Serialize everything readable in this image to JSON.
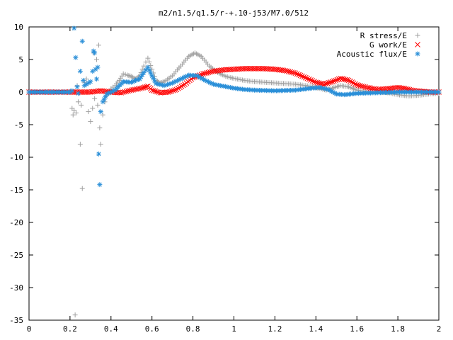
{
  "chart_data": {
    "type": "scatter",
    "title": "m2/n1.5/q1.5/r-+.10-j53/M7.0/512",
    "xlabel": "",
    "ylabel": "",
    "xlim": [
      0,
      2
    ],
    "ylim": [
      -35,
      10
    ],
    "x_ticks": [
      "0",
      "0.2",
      "0.4",
      "0.6",
      "0.8",
      "1",
      "1.2",
      "1.4",
      "1.6",
      "1.8",
      "2"
    ],
    "y_ticks": [
      "10",
      "5",
      "0",
      "-5",
      "-10",
      "-15",
      "-20",
      "-25",
      "-30",
      "-35"
    ],
    "grid": false,
    "legend_position": "top-right",
    "series": [
      {
        "name": "R stress/E",
        "marker": "plus",
        "color": "#a0a0a0",
        "points": [
          [
            0,
            0
          ],
          [
            0.05,
            0
          ],
          [
            0.1,
            0
          ],
          [
            0.15,
            0
          ],
          [
            0.2,
            0
          ],
          [
            0.21,
            -2.5
          ],
          [
            0.215,
            -3.5
          ],
          [
            0.22,
            -2.8
          ],
          [
            0.225,
            -34.2
          ],
          [
            0.23,
            -3.2
          ],
          [
            0.235,
            1.0
          ],
          [
            0.24,
            -1.5
          ],
          [
            0.25,
            -8.0
          ],
          [
            0.255,
            -2.0
          ],
          [
            0.26,
            -14.8
          ],
          [
            0.27,
            1.5
          ],
          [
            0.28,
            2.0
          ],
          [
            0.29,
            -3.0
          ],
          [
            0.3,
            -4.5
          ],
          [
            0.31,
            -2.5
          ],
          [
            0.315,
            6.0
          ],
          [
            0.32,
            -1.0
          ],
          [
            0.33,
            5.0
          ],
          [
            0.335,
            -2.0
          ],
          [
            0.34,
            7.2
          ],
          [
            0.345,
            -5.5
          ],
          [
            0.35,
            -8.0
          ],
          [
            0.36,
            -3.5
          ],
          [
            0.37,
            -1.5
          ],
          [
            0.38,
            -0.5
          ],
          [
            0.4,
            0.5
          ],
          [
            0.42,
            1.0
          ],
          [
            0.44,
            1.8
          ],
          [
            0.46,
            2.8
          ],
          [
            0.48,
            2.6
          ],
          [
            0.5,
            2.4
          ],
          [
            0.52,
            2.0
          ],
          [
            0.54,
            2.5
          ],
          [
            0.56,
            4.0
          ],
          [
            0.58,
            5.2
          ],
          [
            0.6,
            3.5
          ],
          [
            0.62,
            1.8
          ],
          [
            0.64,
            1.4
          ],
          [
            0.66,
            1.6
          ],
          [
            0.7,
            2.5
          ],
          [
            0.74,
            4.0
          ],
          [
            0.78,
            5.5
          ],
          [
            0.81,
            6.0
          ],
          [
            0.84,
            5.5
          ],
          [
            0.88,
            4.0
          ],
          [
            0.92,
            3.0
          ],
          [
            0.96,
            2.4
          ],
          [
            1.0,
            2.1
          ],
          [
            1.05,
            1.8
          ],
          [
            1.1,
            1.6
          ],
          [
            1.15,
            1.5
          ],
          [
            1.2,
            1.4
          ],
          [
            1.25,
            1.3
          ],
          [
            1.3,
            1.2
          ],
          [
            1.35,
            1.0
          ],
          [
            1.4,
            0.7
          ],
          [
            1.45,
            0.3
          ],
          [
            1.48,
            0.6
          ],
          [
            1.52,
            1.0
          ],
          [
            1.56,
            0.8
          ],
          [
            1.6,
            0.3
          ],
          [
            1.65,
            0.1
          ],
          [
            1.7,
            0.0
          ],
          [
            1.75,
            -0.1
          ],
          [
            1.8,
            -0.4
          ],
          [
            1.85,
            -0.6
          ],
          [
            1.9,
            -0.5
          ],
          [
            1.95,
            -0.3
          ],
          [
            2.0,
            -0.2
          ]
        ]
      },
      {
        "name": "G work/E",
        "marker": "cross",
        "color": "#ff0000",
        "points": [
          [
            0,
            0
          ],
          [
            0.1,
            0
          ],
          [
            0.2,
            0
          ],
          [
            0.3,
            0
          ],
          [
            0.35,
            0.2
          ],
          [
            0.4,
            0
          ],
          [
            0.45,
            -0.1
          ],
          [
            0.5,
            0.3
          ],
          [
            0.55,
            0.6
          ],
          [
            0.58,
            0.9
          ],
          [
            0.6,
            0.3
          ],
          [
            0.64,
            -0.1
          ],
          [
            0.68,
            0
          ],
          [
            0.72,
            0.4
          ],
          [
            0.76,
            1.2
          ],
          [
            0.8,
            2.2
          ],
          [
            0.85,
            2.8
          ],
          [
            0.9,
            3.2
          ],
          [
            0.95,
            3.4
          ],
          [
            1.0,
            3.5
          ],
          [
            1.05,
            3.6
          ],
          [
            1.1,
            3.6
          ],
          [
            1.15,
            3.6
          ],
          [
            1.2,
            3.5
          ],
          [
            1.25,
            3.3
          ],
          [
            1.3,
            2.9
          ],
          [
            1.35,
            2.2
          ],
          [
            1.4,
            1.5
          ],
          [
            1.44,
            1.2
          ],
          [
            1.48,
            1.6
          ],
          [
            1.52,
            2.1
          ],
          [
            1.56,
            1.8
          ],
          [
            1.6,
            1.1
          ],
          [
            1.65,
            0.7
          ],
          [
            1.7,
            0.4
          ],
          [
            1.75,
            0.5
          ],
          [
            1.8,
            0.7
          ],
          [
            1.84,
            0.5
          ],
          [
            1.88,
            0.2
          ],
          [
            1.92,
            0.1
          ],
          [
            1.96,
            0.0
          ],
          [
            2.0,
            0.0
          ]
        ]
      },
      {
        "name": "Acoustic flux/E",
        "marker": "star",
        "color": "#2a8fd8",
        "points": [
          [
            0,
            0
          ],
          [
            0.05,
            0
          ],
          [
            0.1,
            0
          ],
          [
            0.15,
            0
          ],
          [
            0.2,
            0
          ],
          [
            0.21,
            0.2
          ],
          [
            0.22,
            9.8
          ],
          [
            0.235,
            0.8
          ],
          [
            0.24,
            -0.2
          ],
          [
            0.25,
            3.2
          ],
          [
            0.26,
            7.8
          ],
          [
            0.265,
            1.8
          ],
          [
            0.27,
            1.0
          ],
          [
            0.28,
            1.2
          ],
          [
            0.29,
            1.4
          ],
          [
            0.3,
            1.6
          ],
          [
            0.31,
            3.2
          ],
          [
            0.315,
            6.3
          ],
          [
            0.32,
            6.0
          ],
          [
            0.325,
            3.5
          ],
          [
            0.33,
            2.0
          ],
          [
            0.335,
            3.8
          ],
          [
            0.34,
            -9.5
          ],
          [
            0.345,
            -14.2
          ],
          [
            0.35,
            -3.0
          ],
          [
            0.36,
            -1.5
          ],
          [
            0.38,
            -0.3
          ],
          [
            0.42,
            0.3
          ],
          [
            0.46,
            1.6
          ],
          [
            0.5,
            1.5
          ],
          [
            0.52,
            1.8
          ],
          [
            0.54,
            2.0
          ],
          [
            0.56,
            3.0
          ],
          [
            0.58,
            3.8
          ],
          [
            0.6,
            2.5
          ],
          [
            0.62,
            1.3
          ],
          [
            0.66,
            1.0
          ],
          [
            0.7,
            1.4
          ],
          [
            0.74,
            2.0
          ],
          [
            0.78,
            2.6
          ],
          [
            0.82,
            2.5
          ],
          [
            0.86,
            1.8
          ],
          [
            0.9,
            1.2
          ],
          [
            0.95,
            0.9
          ],
          [
            1.0,
            0.6
          ],
          [
            1.05,
            0.4
          ],
          [
            1.1,
            0.3
          ],
          [
            1.2,
            0.2
          ],
          [
            1.3,
            0.3
          ],
          [
            1.38,
            0.6
          ],
          [
            1.42,
            0.7
          ],
          [
            1.46,
            0.4
          ],
          [
            1.5,
            -0.3
          ],
          [
            1.54,
            -0.4
          ],
          [
            1.6,
            -0.2
          ],
          [
            1.7,
            -0.1
          ],
          [
            1.8,
            0
          ],
          [
            1.9,
            0
          ],
          [
            2.0,
            0
          ]
        ]
      }
    ]
  }
}
